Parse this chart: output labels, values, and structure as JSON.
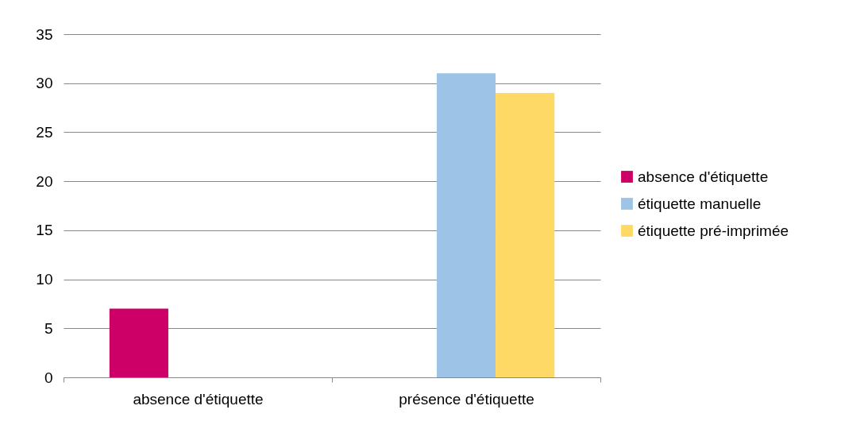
{
  "chart_data": {
    "type": "bar",
    "categories": [
      "absence d'étiquette",
      "présence d'étiquette"
    ],
    "series": [
      {
        "name": "absence d'étiquette",
        "color": "#cc0066",
        "values": [
          7,
          null
        ]
      },
      {
        "name": "étiquette manuelle",
        "color": "#9dc3e6",
        "values": [
          null,
          31
        ]
      },
      {
        "name": "étiquette pré-imprimée",
        "color": "#ffd966",
        "values": [
          null,
          29
        ]
      }
    ],
    "ylim": [
      0,
      35
    ],
    "yticks": [
      0,
      5,
      10,
      15,
      20,
      25,
      30,
      35
    ],
    "grid": "y",
    "legend": "right"
  }
}
